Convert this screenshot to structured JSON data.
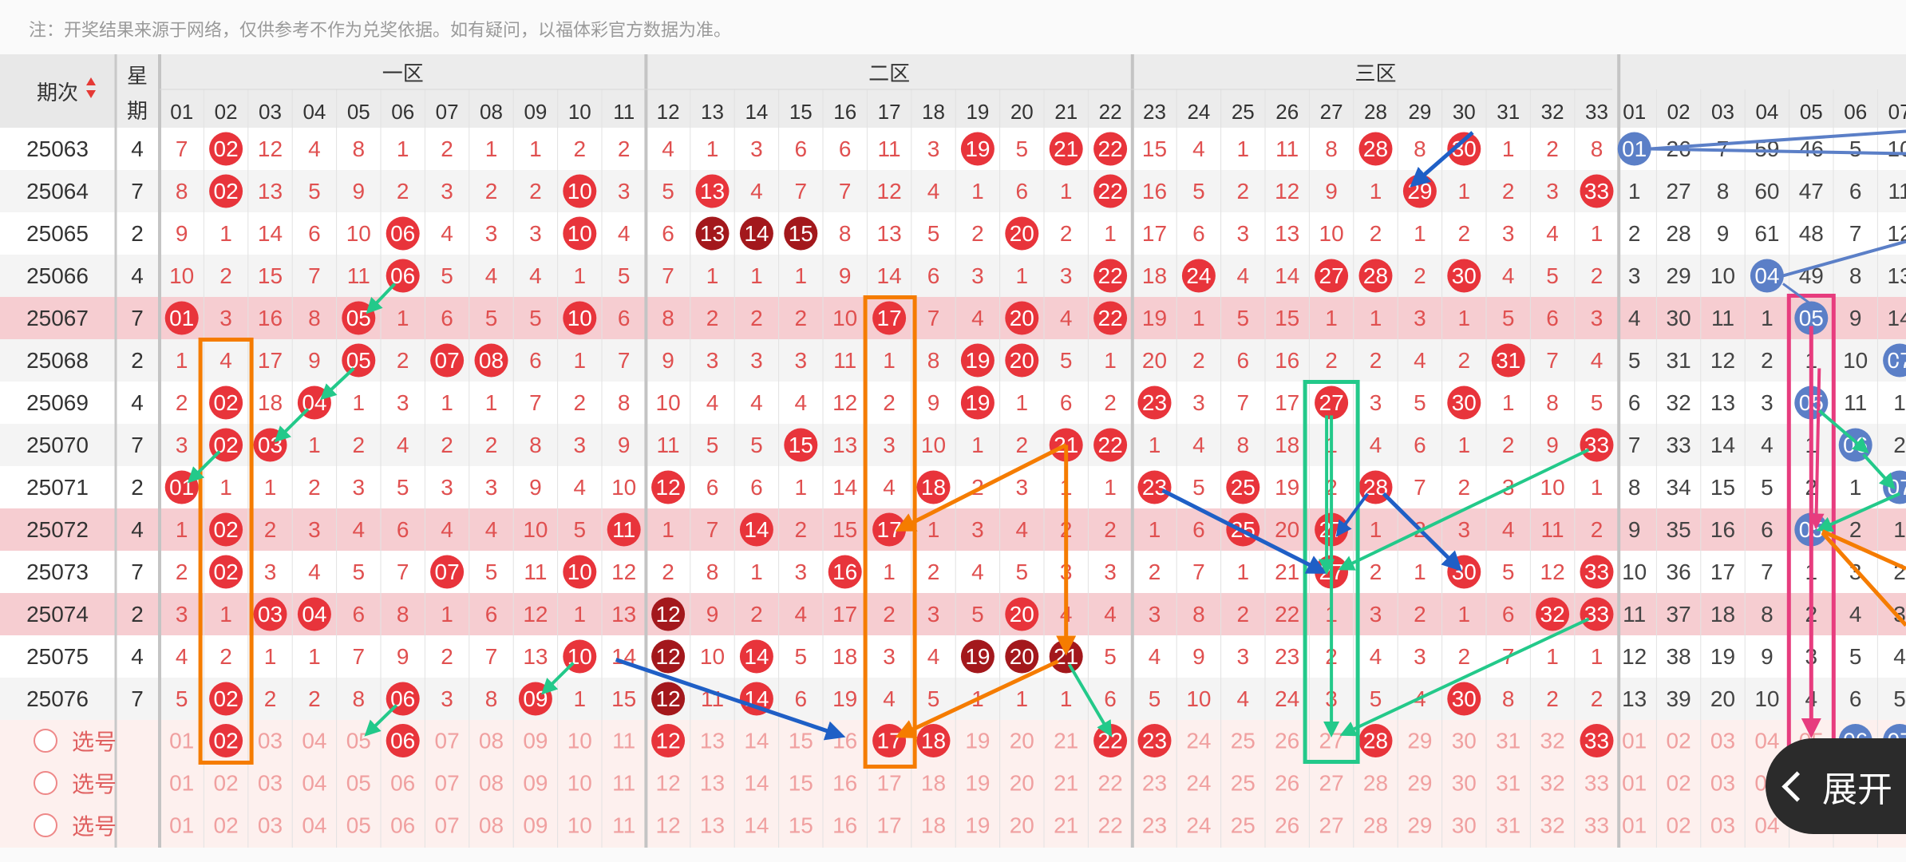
{
  "notice": "注：开奖结果来源于网络，仅供参考不作为兑奖依据。如有疑问，以福体彩官方数据为准。",
  "header": {
    "period": "期次",
    "week_top": "星",
    "week_bottom": "期",
    "zones": [
      "一区",
      "二区",
      "三区"
    ],
    "cols_red": [
      "01",
      "02",
      "03",
      "04",
      "05",
      "06",
      "07",
      "08",
      "09",
      "10",
      "11",
      "12",
      "13",
      "14",
      "15",
      "16",
      "17",
      "18",
      "19",
      "20",
      "21",
      "22",
      "23",
      "24",
      "25",
      "26",
      "27",
      "28",
      "29",
      "30",
      "31",
      "32",
      "33"
    ],
    "cols_blue": [
      "01",
      "02",
      "03",
      "04",
      "05",
      "06",
      "07"
    ]
  },
  "rows": [
    {
      "period": "25063",
      "week": "4",
      "red": [
        "7",
        "02",
        "12",
        "4",
        "8",
        "1",
        "2",
        "1",
        "1",
        "2",
        "2",
        "4",
        "1",
        "3",
        "6",
        "6",
        "11",
        "3",
        "19",
        "5",
        "21",
        "22",
        "15",
        "4",
        "1",
        "11",
        "8",
        "28",
        "8",
        "30",
        "1",
        "2",
        "8"
      ],
      "blue": [
        "01",
        "26",
        "7",
        "59",
        "46",
        "5",
        "10"
      ]
    },
    {
      "period": "25064",
      "week": "7",
      "red": [
        "8",
        "02",
        "13",
        "5",
        "9",
        "2",
        "3",
        "2",
        "2",
        "10",
        "3",
        "5",
        "13",
        "4",
        "7",
        "7",
        "12",
        "4",
        "1",
        "6",
        "1",
        "22",
        "16",
        "5",
        "2",
        "12",
        "9",
        "1",
        "29",
        "1",
        "2",
        "3",
        "33"
      ],
      "blue": [
        "1",
        "27",
        "8",
        "60",
        "47",
        "6",
        "11"
      ]
    },
    {
      "period": "25065",
      "week": "2",
      "red": [
        "9",
        "1",
        "14",
        "6",
        "10",
        "06",
        "4",
        "3",
        "3",
        "10",
        "4",
        "6",
        "13",
        "14",
        "15",
        "8",
        "13",
        "5",
        "2",
        "20",
        "2",
        "1",
        "17",
        "6",
        "3",
        "13",
        "10",
        "2",
        "1",
        "2",
        "3",
        "4",
        "1"
      ],
      "blue": [
        "2",
        "28",
        "9",
        "61",
        "48",
        "7",
        "12"
      ]
    },
    {
      "period": "25066",
      "week": "4",
      "red": [
        "10",
        "2",
        "15",
        "7",
        "11",
        "06",
        "5",
        "4",
        "4",
        "1",
        "5",
        "7",
        "1",
        "1",
        "1",
        "9",
        "14",
        "6",
        "3",
        "1",
        "3",
        "22",
        "18",
        "24",
        "4",
        "14",
        "27",
        "28",
        "2",
        "30",
        "4",
        "5",
        "2"
      ],
      "blue": [
        "3",
        "29",
        "10",
        "04",
        "49",
        "8",
        "13"
      ]
    },
    {
      "period": "25067",
      "week": "7",
      "red": [
        "01",
        "3",
        "16",
        "8",
        "05",
        "1",
        "6",
        "5",
        "5",
        "10",
        "6",
        "8",
        "2",
        "2",
        "2",
        "10",
        "17",
        "7",
        "4",
        "20",
        "4",
        "22",
        "19",
        "1",
        "5",
        "15",
        "1",
        "1",
        "3",
        "1",
        "5",
        "6",
        "3"
      ],
      "blue": [
        "4",
        "30",
        "11",
        "1",
        "05",
        "9",
        "14"
      ]
    },
    {
      "period": "25068",
      "week": "2",
      "red": [
        "1",
        "4",
        "17",
        "9",
        "05",
        "2",
        "07",
        "08",
        "6",
        "1",
        "7",
        "9",
        "3",
        "3",
        "3",
        "11",
        "1",
        "8",
        "19",
        "20",
        "5",
        "1",
        "20",
        "2",
        "6",
        "16",
        "2",
        "2",
        "4",
        "2",
        "31",
        "7",
        "4"
      ],
      "blue": [
        "5",
        "31",
        "12",
        "2",
        "1",
        "10",
        "07"
      ]
    },
    {
      "period": "25069",
      "week": "4",
      "red": [
        "2",
        "02",
        "18",
        "04",
        "1",
        "3",
        "1",
        "1",
        "7",
        "2",
        "8",
        "10",
        "4",
        "4",
        "4",
        "12",
        "2",
        "9",
        "19",
        "1",
        "6",
        "2",
        "23",
        "3",
        "7",
        "17",
        "27",
        "3",
        "5",
        "30",
        "1",
        "8",
        "5"
      ],
      "blue": [
        "6",
        "32",
        "13",
        "3",
        "05",
        "11",
        "1"
      ]
    },
    {
      "period": "25070",
      "week": "7",
      "red": [
        "3",
        "02",
        "03",
        "1",
        "2",
        "4",
        "2",
        "2",
        "8",
        "3",
        "9",
        "11",
        "5",
        "5",
        "15",
        "13",
        "3",
        "10",
        "1",
        "2",
        "21",
        "22",
        "1",
        "4",
        "8",
        "18",
        "1",
        "4",
        "6",
        "1",
        "2",
        "9",
        "33"
      ],
      "blue": [
        "7",
        "33",
        "14",
        "4",
        "1",
        "06",
        "2"
      ]
    },
    {
      "period": "25071",
      "week": "2",
      "red": [
        "01",
        "1",
        "1",
        "2",
        "3",
        "5",
        "3",
        "3",
        "9",
        "4",
        "10",
        "12",
        "6",
        "6",
        "1",
        "14",
        "4",
        "18",
        "2",
        "3",
        "1",
        "1",
        "23",
        "5",
        "25",
        "19",
        "2",
        "28",
        "7",
        "2",
        "3",
        "10",
        "1"
      ],
      "blue": [
        "8",
        "34",
        "15",
        "5",
        "2",
        "1",
        "07"
      ]
    },
    {
      "period": "25072",
      "week": "4",
      "red": [
        "1",
        "02",
        "2",
        "3",
        "4",
        "6",
        "4",
        "4",
        "10",
        "5",
        "11",
        "1",
        "7",
        "14",
        "2",
        "15",
        "17",
        "1",
        "3",
        "4",
        "2",
        "2",
        "1",
        "6",
        "25",
        "20",
        "27",
        "1",
        "2",
        "3",
        "4",
        "11",
        "2"
      ],
      "blue": [
        "9",
        "35",
        "16",
        "6",
        "05",
        "2",
        "1"
      ]
    },
    {
      "period": "25073",
      "week": "7",
      "red": [
        "2",
        "02",
        "3",
        "4",
        "5",
        "7",
        "07",
        "5",
        "11",
        "10",
        "12",
        "2",
        "8",
        "1",
        "3",
        "16",
        "1",
        "2",
        "4",
        "5",
        "3",
        "3",
        "2",
        "7",
        "1",
        "21",
        "27",
        "2",
        "1",
        "30",
        "5",
        "12",
        "33"
      ],
      "blue": [
        "10",
        "36",
        "17",
        "7",
        "1",
        "3",
        "2"
      ]
    },
    {
      "period": "25074",
      "week": "2",
      "red": [
        "3",
        "1",
        "03",
        "04",
        "6",
        "8",
        "1",
        "6",
        "12",
        "1",
        "13",
        "12",
        "9",
        "2",
        "4",
        "17",
        "2",
        "3",
        "5",
        "20",
        "4",
        "4",
        "3",
        "8",
        "2",
        "22",
        "1",
        "3",
        "2",
        "1",
        "6",
        "32",
        "33"
      ],
      "blue": [
        "11",
        "37",
        "18",
        "8",
        "2",
        "4",
        "3"
      ]
    },
    {
      "period": "25075",
      "week": "4",
      "red": [
        "4",
        "2",
        "1",
        "1",
        "7",
        "9",
        "2",
        "7",
        "13",
        "10",
        "14",
        "12",
        "10",
        "14",
        "5",
        "18",
        "3",
        "4",
        "19",
        "20",
        "21",
        "5",
        "4",
        "9",
        "3",
        "23",
        "2",
        "4",
        "3",
        "2",
        "7",
        "1",
        "1"
      ],
      "blue": [
        "12",
        "38",
        "19",
        "9",
        "3",
        "5",
        "4"
      ]
    },
    {
      "period": "25076",
      "week": "7",
      "red": [
        "5",
        "02",
        "2",
        "2",
        "8",
        "06",
        "3",
        "8",
        "09",
        "1",
        "15",
        "12",
        "11",
        "14",
        "6",
        "19",
        "4",
        "5",
        "1",
        "1",
        "1",
        "6",
        "5",
        "10",
        "4",
        "24",
        "3",
        "5",
        "4",
        "30",
        "8",
        "2",
        "2"
      ],
      "blue": [
        "13",
        "39",
        "20",
        "10",
        "4",
        "6",
        "5"
      ]
    }
  ],
  "special": {
    "red_hits": {
      "1": [
        "02"
      ],
      "5": [
        "05"
      ],
      "11": [
        "11"
      ],
      "16": [
        "16"
      ],
      "17": [
        "17"
      ],
      "21": [
        "21"
      ],
      "22": [
        "22"
      ],
      "27": [
        "27"
      ],
      "32": [
        "32"
      ]
    },
    "blue_hits": {
      "5": [
        "05"
      ],
      "6": [
        "06"
      ]
    }
  },
  "option_label": "选号",
  "expand_label": "展开",
  "colors": {
    "red": "#e8343b",
    "dark_red": "#a3181c",
    "blue_ball": "#5b7fc7",
    "highlight_row": "#f6cdd1",
    "orange": "#f57c00",
    "green": "#23c98a",
    "blue_arrow": "#1f5fc6",
    "pink": "#e73c7e"
  }
}
